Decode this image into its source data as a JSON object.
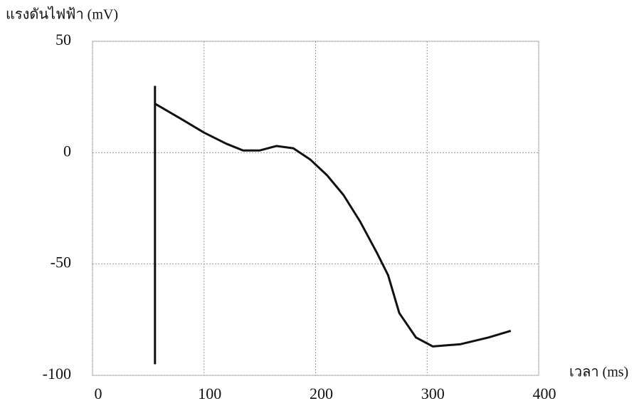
{
  "chart_data": {
    "type": "line",
    "y_label": "แรงดันไฟฟ้า (mV)",
    "x_label": "เวลา (ms)",
    "xlim": [
      0,
      400
    ],
    "xticks": [
      0,
      100,
      200,
      300,
      400
    ],
    "ylim": [
      -100,
      50
    ],
    "yticks": [
      -100,
      -50,
      0,
      50
    ],
    "grid": true,
    "series": [
      {
        "color": "#111111",
        "x": [
          56,
          56
        ],
        "values": [
          -95,
          30
        ]
      },
      {
        "color": "#111111",
        "x": [
          56,
          80,
          100,
          120,
          135,
          150,
          165,
          180,
          195,
          210,
          225,
          240,
          255,
          265,
          275,
          290,
          305,
          330,
          355,
          375
        ],
        "values": [
          22,
          15,
          9,
          4,
          1,
          1,
          3,
          2,
          -3,
          -10,
          -19,
          -31,
          -45,
          -55,
          -72,
          -83,
          -87,
          -86,
          -83,
          -80
        ]
      }
    ]
  }
}
